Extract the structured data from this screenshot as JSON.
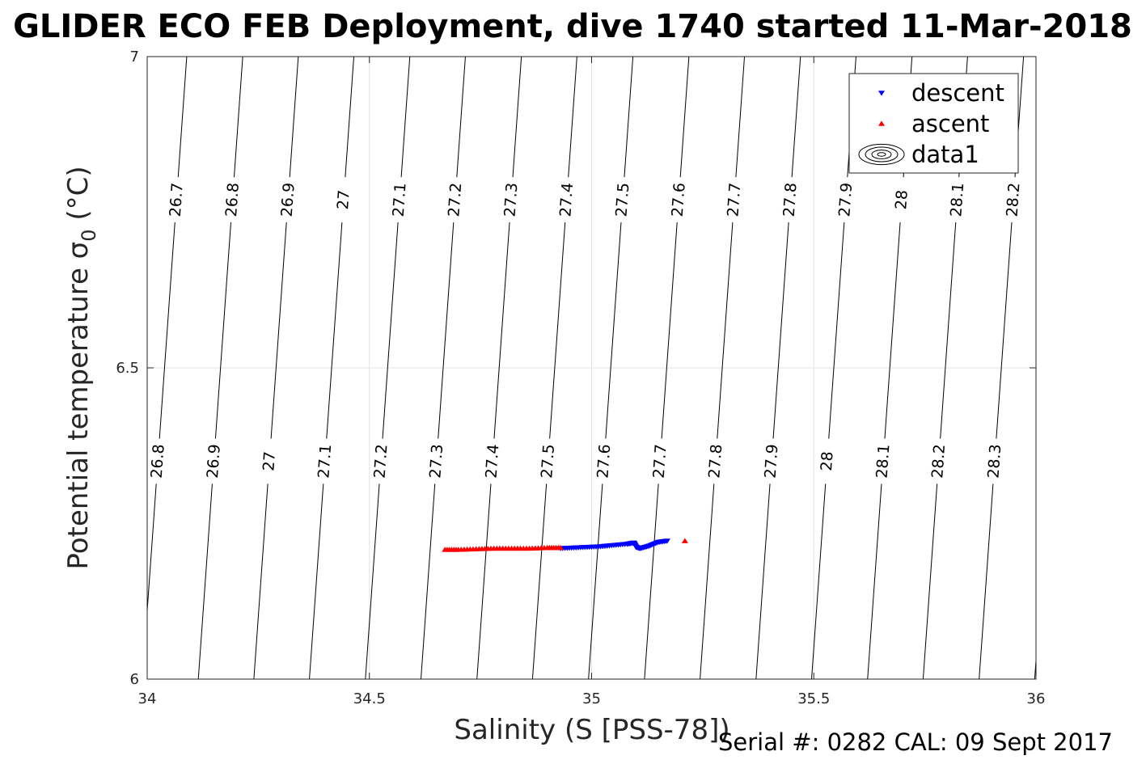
{
  "chart_data": {
    "type": "scatter",
    "title": "GLIDER ECO FEB Deployment, dive 1740 started 11-Mar-2018",
    "xlabel": "Salinity (S [PSS-78])",
    "ylabel_main": "Potential temperature σ",
    "ylabel_sub": "0",
    "ylabel_unit": " (°C)",
    "xlim": [
      34,
      36
    ],
    "ylim": [
      6,
      7
    ],
    "xticks": [
      "34",
      "34.5",
      "35",
      "35.5",
      "36"
    ],
    "yticks": [
      "6",
      "6.5",
      "7"
    ],
    "grid": true,
    "legend_position": "top-right",
    "legend": [
      "descent",
      "ascent",
      "data1"
    ],
    "series": [
      {
        "name": "descent",
        "marker": "down-triangle",
        "color": "#0000ff",
        "points": [
          [
            34.93,
            6.21
          ],
          [
            34.96,
            6.211
          ],
          [
            34.99,
            6.212
          ],
          [
            35.02,
            6.213
          ],
          [
            35.05,
            6.215
          ],
          [
            35.08,
            6.217
          ],
          [
            35.095,
            6.219
          ],
          [
            35.1,
            6.212
          ],
          [
            35.11,
            6.21
          ],
          [
            35.13,
            6.214
          ],
          [
            35.15,
            6.22
          ],
          [
            35.17,
            6.222
          ]
        ]
      },
      {
        "name": "ascent",
        "marker": "up-triangle",
        "color": "#ff0000",
        "points": [
          [
            34.67,
            6.208
          ],
          [
            34.7,
            6.208
          ],
          [
            34.74,
            6.209
          ],
          [
            34.78,
            6.21
          ],
          [
            34.82,
            6.21
          ],
          [
            34.86,
            6.21
          ],
          [
            34.9,
            6.211
          ],
          [
            34.93,
            6.211
          ],
          [
            35.21,
            6.222
          ]
        ]
      }
    ],
    "contours": {
      "name": "data1",
      "levels": [
        {
          "label": "26.7",
          "top_x": 34.089,
          "slope": 0.1
        },
        {
          "label": "26.8",
          "top_x": 34.215,
          "slope": 0.1
        },
        {
          "label": "26.9",
          "top_x": 34.34,
          "slope": 0.1
        },
        {
          "label": "27",
          "top_x": 34.465,
          "slope": 0.1
        },
        {
          "label": "27.1",
          "top_x": 34.591,
          "slope": 0.1
        },
        {
          "label": "27.2",
          "top_x": 34.716,
          "slope": 0.1
        },
        {
          "label": "27.3",
          "top_x": 34.842,
          "slope": 0.1
        },
        {
          "label": "27.4",
          "top_x": 34.967,
          "slope": 0.1
        },
        {
          "label": "27.5",
          "top_x": 35.093,
          "slope": 0.1
        },
        {
          "label": "27.6",
          "top_x": 35.219,
          "slope": 0.1
        },
        {
          "label": "27.7",
          "top_x": 35.344,
          "slope": 0.1
        },
        {
          "label": "27.8",
          "top_x": 35.47,
          "slope": 0.1
        },
        {
          "label": "27.9",
          "top_x": 35.595,
          "slope": 0.1
        },
        {
          "label": "28",
          "top_x": 35.721,
          "slope": 0.1
        },
        {
          "label": "28.1",
          "top_x": 35.846,
          "slope": 0.1
        },
        {
          "label": "28.2",
          "top_x": 35.972,
          "slope": 0.1
        },
        {
          "label": "28.3",
          "top_x": 36.097,
          "slope": 0.1
        }
      ]
    }
  },
  "footer": {
    "serial": "Serial #: 0282  CAL: 09 Sept 2017"
  }
}
